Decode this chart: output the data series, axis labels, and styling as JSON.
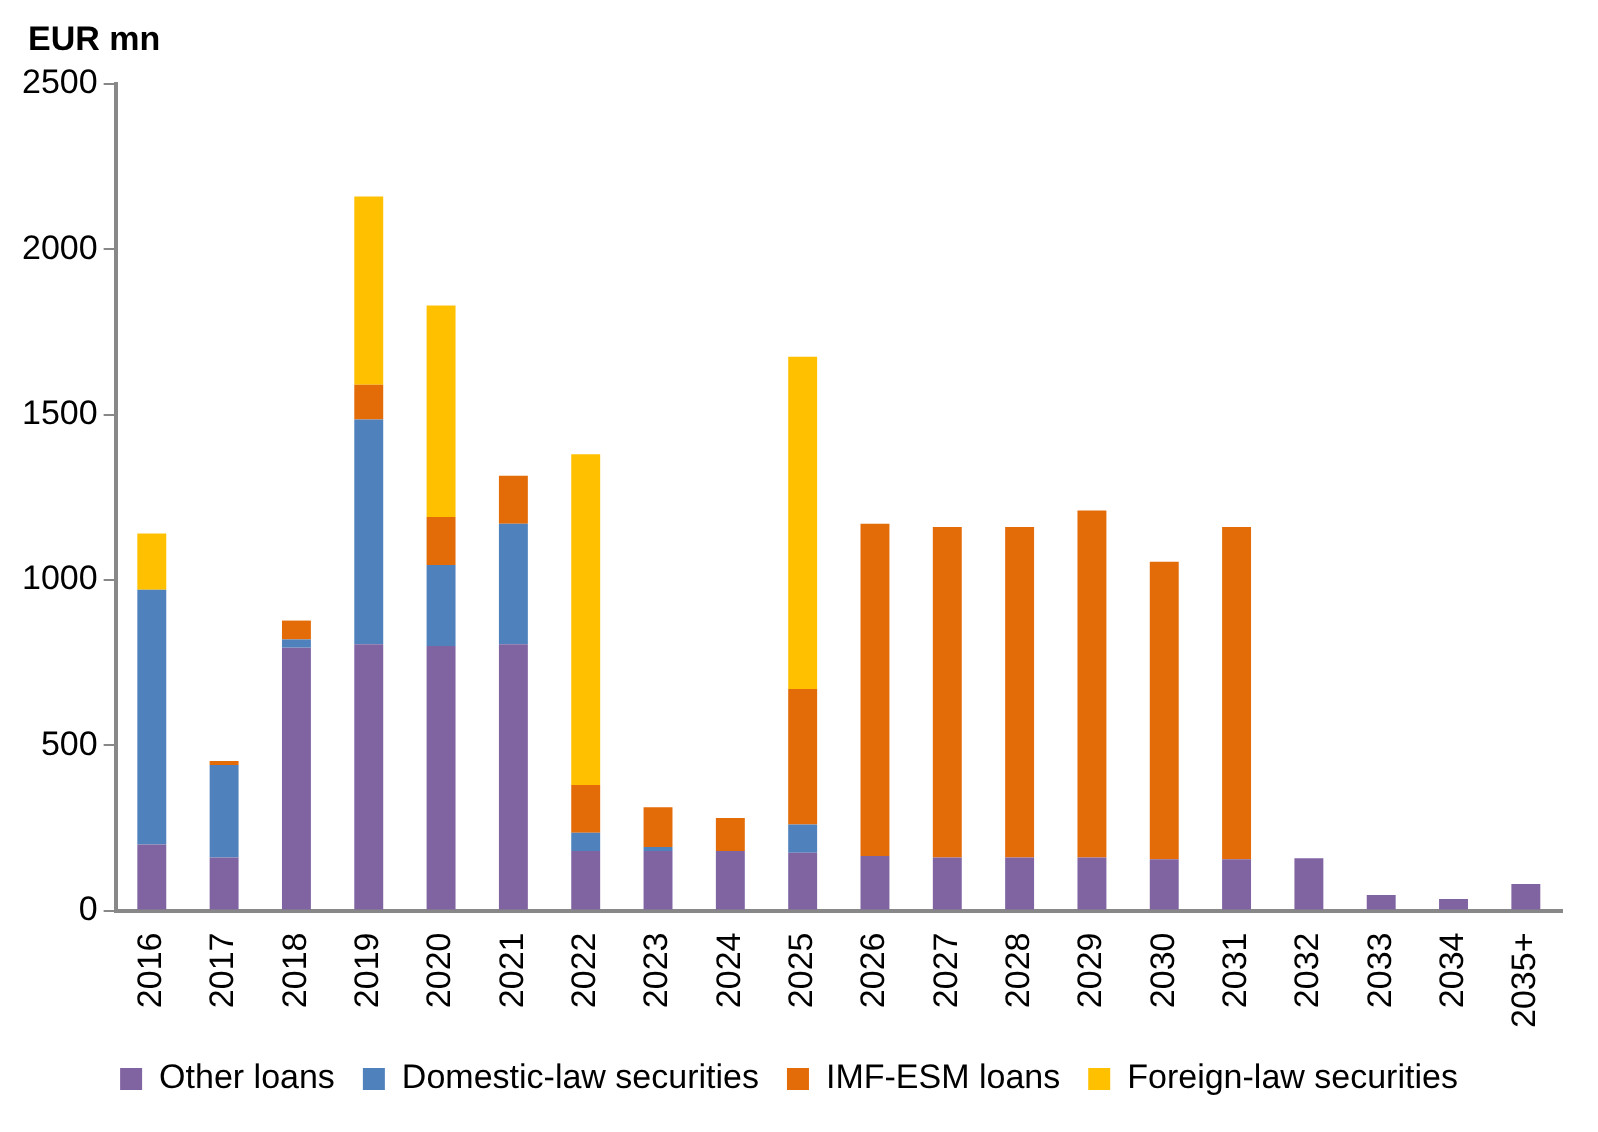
{
  "chart_data": {
    "type": "bar",
    "stacked": true,
    "ylabel": "EUR mn",
    "categories": [
      "2016",
      "2017",
      "2018",
      "2019",
      "2020",
      "2021",
      "2022",
      "2023",
      "2024",
      "2025",
      "2026",
      "2027",
      "2028",
      "2029",
      "2030",
      "2031",
      "2032",
      "2033",
      "2034",
      "2035+"
    ],
    "series": [
      {
        "name": "Other loans",
        "color": "#8064a2",
        "values": [
          200,
          160,
          795,
          805,
          800,
          805,
          180,
          180,
          180,
          175,
          165,
          160,
          160,
          160,
          155,
          155,
          158,
          47,
          35,
          80
        ]
      },
      {
        "name": "Domestic-law securities",
        "color": "#4f81bd",
        "values": [
          770,
          280,
          25,
          680,
          245,
          365,
          55,
          12,
          0,
          85,
          0,
          0,
          0,
          0,
          0,
          0,
          0,
          0,
          0,
          0
        ]
      },
      {
        "name": "IMF-ESM loans",
        "color": "#e36c09",
        "values": [
          0,
          12,
          57,
          105,
          145,
          145,
          145,
          120,
          100,
          410,
          1005,
          1000,
          1000,
          1050,
          900,
          1005,
          0,
          0,
          0,
          0
        ]
      },
      {
        "name": "Foreign-law securities",
        "color": "#ffc000",
        "values": [
          170,
          0,
          0,
          570,
          640,
          0,
          1000,
          0,
          0,
          1005,
          0,
          0,
          0,
          0,
          0,
          0,
          0,
          0,
          0,
          0
        ]
      }
    ],
    "ylim": [
      0,
      2500
    ],
    "yticks": [
      0,
      500,
      1000,
      1500,
      2000,
      2500
    ],
    "grid": false,
    "legend": "bottom"
  }
}
